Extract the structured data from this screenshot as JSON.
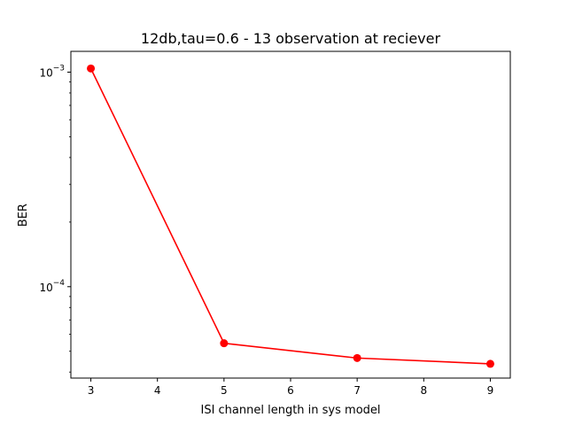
{
  "chart_data": {
    "type": "line",
    "title": "12db,tau=0.6 - 13 observation at reciever",
    "xlabel": "ISI channel length in sys model",
    "ylabel": "BER",
    "x": [
      3,
      5,
      7,
      9
    ],
    "y_scale": "log",
    "series": [
      {
        "values": [
          0.00104,
          5.45e-05,
          4.65e-05,
          4.37e-05
        ],
        "color": "#ff0000",
        "marker": "circle"
      }
    ],
    "xlim": [
      2.7,
      9.3
    ],
    "ylim": [
      3.75e-05,
      0.00125
    ],
    "x_ticks": [
      "3",
      "4",
      "5",
      "6",
      "7",
      "8",
      "9"
    ],
    "y_tick_labels": [
      {
        "base": "10",
        "exp": "−3",
        "value": 0.001
      },
      {
        "base": "10",
        "exp": "−4",
        "value": 0.0001
      }
    ],
    "grid": false
  }
}
